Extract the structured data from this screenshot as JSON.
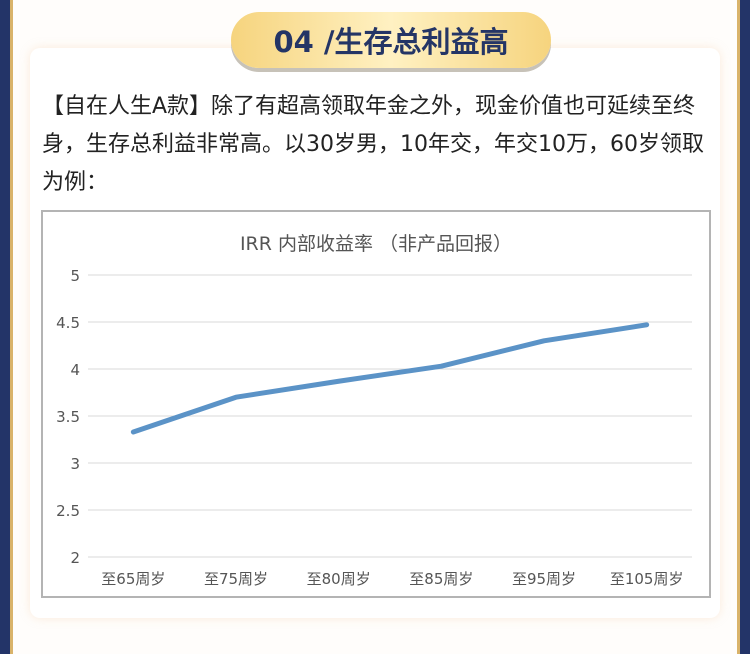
{
  "section": {
    "badge": "04 /生存总利益高"
  },
  "description": "【自在人生A款】除了有超高领取年金之外，现金价值也可延续至终身，生存总利益非常高。以30岁男，10年交，年交10万，60岁领取为例：",
  "chart_data": {
    "type": "line",
    "title": "IRR 内部收益率 （非产品回报）",
    "categories": [
      "至65周岁",
      "至75周岁",
      "至80周岁",
      "至85周岁",
      "至95周岁",
      "至105周岁"
    ],
    "values": [
      3.33,
      3.7,
      3.87,
      4.03,
      4.3,
      4.47
    ],
    "ylim": [
      2,
      5
    ],
    "yticks": [
      "2",
      "2.5",
      "3",
      "3.5",
      "4",
      "4.5",
      "5"
    ],
    "grid": true,
    "line_color": "#5b93c7"
  }
}
